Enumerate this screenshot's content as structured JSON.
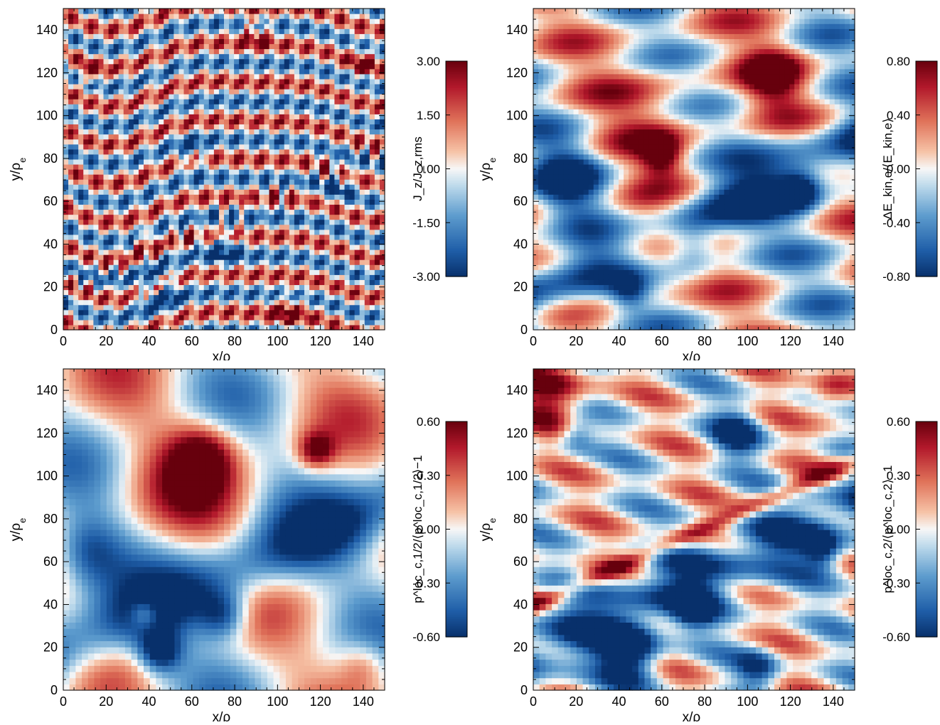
{
  "chart_data": [
    {
      "type": "heatmap",
      "title": "",
      "xlabel": "x/ρ",
      "xlabel_sub": "e",
      "ylabel": "y/ρ",
      "ylabel_sub": "e",
      "xlim": [
        0,
        150
      ],
      "ylim": [
        0,
        150
      ],
      "xticks": [
        "0",
        "20",
        "40",
        "60",
        "80",
        "100",
        "120",
        "140"
      ],
      "yticks": [
        "0",
        "20",
        "40",
        "60",
        "80",
        "100",
        "120",
        "140"
      ],
      "colorbar": {
        "label": "J_z/J_z,rms",
        "range": [
          -3.0,
          3.0
        ],
        "ticks": [
          "3.00",
          "1.50",
          "0.00",
          "-1.50",
          "-3.00"
        ]
      }
    },
    {
      "type": "heatmap",
      "title": "",
      "xlabel": "x/ρ",
      "xlabel_sub": "e",
      "ylabel": "y/ρ",
      "ylabel_sub": "e",
      "xlim": [
        0,
        150
      ],
      "ylim": [
        0,
        150
      ],
      "xticks": [
        "0",
        "20",
        "40",
        "60",
        "80",
        "100",
        "120",
        "140"
      ],
      "yticks": [
        "0",
        "20",
        "40",
        "60",
        "80",
        "100",
        "120",
        "140"
      ],
      "colorbar": {
        "label": "ΔE_kin,e/⟨E_kin,e⟩",
        "range": [
          -0.8,
          0.8
        ],
        "ticks": [
          "0.80",
          "0.40",
          "0.00",
          "-0.40",
          "-0.80"
        ]
      }
    },
    {
      "type": "heatmap",
      "title": "",
      "xlabel": "x/ρ",
      "xlabel_sub": "e",
      "ylabel": "y/ρ",
      "ylabel_sub": "e",
      "xlim": [
        0,
        150
      ],
      "ylim": [
        0,
        150
      ],
      "xticks": [
        "0",
        "20",
        "40",
        "60",
        "80",
        "100",
        "120",
        "140"
      ],
      "yticks": [
        "0",
        "20",
        "40",
        "60",
        "80",
        "100",
        "120",
        "140"
      ],
      "colorbar": {
        "label": "p^loc_c,1/2/⟨p^loc_c,1/2⟩−1",
        "range": [
          -0.6,
          0.6
        ],
        "ticks": [
          "0.60",
          "0.30",
          "0.00",
          "-0.30",
          "-0.60"
        ]
      }
    },
    {
      "type": "heatmap",
      "title": "",
      "xlabel": "x/ρ",
      "xlabel_sub": "e",
      "ylabel": "y/ρ",
      "ylabel_sub": "e",
      "xlim": [
        0,
        150
      ],
      "ylim": [
        0,
        150
      ],
      "xticks": [
        "0",
        "20",
        "40",
        "60",
        "80",
        "100",
        "120",
        "140"
      ],
      "yticks": [
        "0",
        "20",
        "40",
        "60",
        "80",
        "100",
        "120",
        "140"
      ],
      "colorbar": {
        "label": "p^loc_c,2/⟨p^loc_c,2⟩−1",
        "range": [
          -0.6,
          0.6
        ],
        "ticks": [
          "0.60",
          "0.30",
          "0.00",
          "-0.30",
          "-0.60"
        ]
      }
    }
  ],
  "colormap": {
    "name": "RdBu_r",
    "low": "#08306b",
    "mid": "#f7f7f7",
    "high": "#67000d"
  }
}
